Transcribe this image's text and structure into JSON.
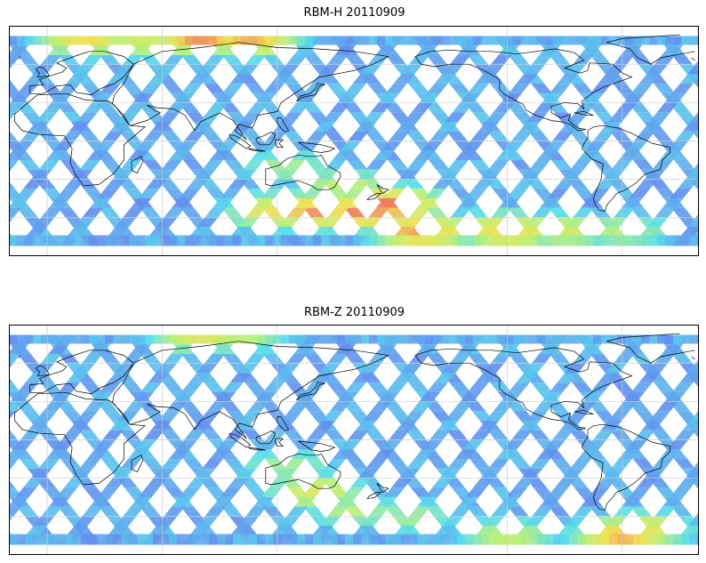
{
  "panels": [
    {
      "title": "RBM-H 20110909",
      "hot_spots": [
        {
          "lon": -180,
          "lat": -50,
          "level": 0.95
        },
        {
          "lon": -165,
          "lat": -70,
          "level": 0.9
        },
        {
          "lon": -120,
          "lat": -70,
          "level": 0.8
        },
        {
          "lon": -90,
          "lat": -70,
          "level": 0.6
        },
        {
          "lon": -60,
          "lat": -70,
          "level": 0.5
        },
        {
          "lon": 20,
          "lat": 80,
          "level": 0.75
        },
        {
          "lon": 50,
          "lat": 78,
          "level": 0.6
        },
        {
          "lon": 80,
          "lat": 82,
          "level": 0.95
        },
        {
          "lon": 105,
          "lat": 80,
          "level": 0.85
        },
        {
          "lon": 120,
          "lat": -55,
          "level": 0.75
        },
        {
          "lon": 140,
          "lat": -55,
          "level": 0.9
        },
        {
          "lon": 165,
          "lat": -55,
          "level": 0.95
        },
        {
          "lon": 155,
          "lat": -35,
          "level": 0.55
        },
        {
          "lon": 125,
          "lat": -20,
          "level": 0.45
        }
      ]
    },
    {
      "title": "RBM-Z 20110909",
      "hot_spots": [
        {
          "lon": -170,
          "lat": -60,
          "level": 0.45
        },
        {
          "lon": -120,
          "lat": -75,
          "level": 0.55
        },
        {
          "lon": -60,
          "lat": -75,
          "level": 0.85
        },
        {
          "lon": -50,
          "lat": -70,
          "level": 0.7
        },
        {
          "lon": 80,
          "lat": 82,
          "level": 0.7
        },
        {
          "lon": 100,
          "lat": 82,
          "level": 0.55
        },
        {
          "lon": 140,
          "lat": -40,
          "level": 0.65
        },
        {
          "lon": 125,
          "lat": -20,
          "level": 0.45
        },
        {
          "lon": 160,
          "lat": -55,
          "level": 0.5
        }
      ]
    }
  ],
  "map": {
    "lon_min": -180,
    "lon_max": 180,
    "lat_min": -90,
    "lat_max": 90,
    "meridians_deg": [
      -120,
      -60,
      0,
      60,
      120
    ],
    "parallels_deg": [
      -60,
      -30,
      0,
      30,
      60
    ],
    "center_lon": 160,
    "data_lat_max": 82,
    "data_lat_min": -82
  },
  "colors": {
    "low": "#6a6af0",
    "mid": "#55dded",
    "mid2": "#b8f07a",
    "high": "#f0e050",
    "max": "#ee5560",
    "coast": "#000000",
    "grid": "#cccccc"
  }
}
